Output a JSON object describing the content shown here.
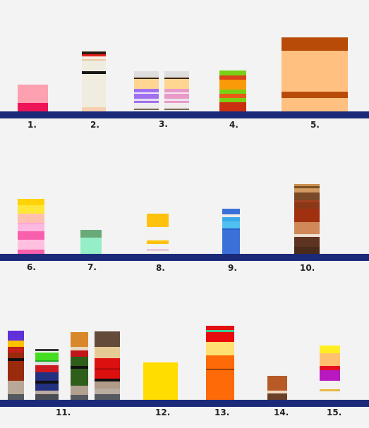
{
  "shelf_color": "#1b2a78",
  "labels": [
    "1.",
    "2.",
    "3.",
    "4.",
    "5.",
    "6.",
    "7.",
    "8.",
    "9.",
    "10.",
    "11.",
    "12.",
    "13.",
    "14.",
    "15."
  ],
  "stacks": [
    {
      "name": "stack-1",
      "bands": [
        [
          "#fda0b0",
          26
        ],
        [
          "#ee1458",
          12
        ]
      ]
    },
    {
      "name": "stack-2",
      "bands": [
        [
          "#2a1a10",
          4
        ],
        [
          "#e8201a",
          3
        ],
        [
          "#f6efe5",
          4
        ],
        [
          "#e8c8a0",
          2
        ],
        [
          "#f0ece0",
          15
        ],
        [
          "#151515",
          4
        ],
        [
          "#f0ece0",
          47
        ],
        [
          "#f8d0b0",
          6
        ]
      ]
    },
    {
      "name": "stack-3a",
      "bands": [
        [
          "#dedede",
          8
        ],
        [
          "#f0e8d8",
          1
        ],
        [
          "#3b2410",
          2
        ],
        [
          "#ffd591",
          14
        ],
        [
          "#a070f0",
          5
        ],
        [
          "#f0e8f8",
          2
        ],
        [
          "#a070f0",
          7
        ],
        [
          "#e8e0f0",
          3
        ],
        [
          "#a070f0",
          3
        ],
        [
          "#efedeb",
          8
        ],
        [
          "#7d6a58",
          2
        ],
        [
          "#efedeb",
          2
        ]
      ]
    },
    {
      "name": "stack-3b",
      "bands": [
        [
          "#dedede",
          8
        ],
        [
          "#f0e8d8",
          1
        ],
        [
          "#3b2410",
          2
        ],
        [
          "#ffd591",
          14
        ],
        [
          "#e89ac8",
          5
        ],
        [
          "#f5e8f0",
          2
        ],
        [
          "#e89ac8",
          7
        ],
        [
          "#eee5ec",
          3
        ],
        [
          "#e89ac8",
          3
        ],
        [
          "#efedeb",
          8
        ],
        [
          "#7d6a58",
          2
        ],
        [
          "#efedeb",
          2
        ]
      ]
    },
    {
      "name": "stack-4",
      "bands": [
        [
          "#7ad014",
          7
        ],
        [
          "#d84318",
          6
        ],
        [
          "#fb9a08",
          14
        ],
        [
          "#7ad014",
          6
        ],
        [
          "#e85a18",
          6
        ],
        [
          "#7ad014",
          6
        ],
        [
          "#cc2f10",
          13
        ]
      ]
    },
    {
      "name": "stack-5",
      "bands": [
        [
          "#b84b08",
          19
        ],
        [
          "#ffc080",
          58
        ],
        [
          "#b84b08",
          9
        ],
        [
          "#ffc080",
          19
        ]
      ]
    },
    {
      "name": "stack-6",
      "bands": [
        [
          "#ffd20a",
          9
        ],
        [
          "#ffe73a",
          12
        ],
        [
          "#ffc0b0",
          13
        ],
        [
          "#fba6dc",
          2
        ],
        [
          "#ffb8e0",
          10
        ],
        [
          "#f85fac",
          12
        ],
        [
          "#ffc0e0",
          14
        ],
        [
          "#f85fac",
          6
        ]
      ]
    },
    {
      "name": "stack-7",
      "bands": [
        [
          "#6aaa78",
          11
        ],
        [
          "#96eec8",
          23
        ]
      ]
    },
    {
      "name": "stack-8",
      "bands": [
        [
          "#ffc20a",
          19
        ],
        [
          "#f4f2f0",
          19
        ],
        [
          "#ffc20a",
          5
        ],
        [
          "#f4f2f0",
          7
        ],
        [
          "#e8c8e0",
          3
        ],
        [
          "#f4f2f0",
          4
        ]
      ]
    },
    {
      "name": "stack-9",
      "bands": [
        [
          "#3a70d8",
          8
        ],
        [
          "#f0ece8",
          4
        ],
        [
          "#3aaaec",
          6
        ],
        [
          "#50c0f0",
          10
        ],
        [
          "#2860c8",
          2
        ],
        [
          "#3a70d8",
          34
        ]
      ]
    },
    {
      "name": "stack-10",
      "bands": [
        [
          "#c89050",
          3
        ],
        [
          "#7a5020",
          3
        ],
        [
          "#d29a62",
          6
        ],
        [
          "#7a4a28",
          11
        ],
        [
          "#a04020",
          3
        ],
        [
          "#8a3818",
          9
        ],
        [
          "#a03010",
          19
        ],
        [
          "#d08858",
          17
        ],
        [
          "#f0e0d0",
          4
        ],
        [
          "#5e3420",
          14
        ],
        [
          "#4a2a18",
          10
        ]
      ]
    },
    {
      "name": "stack-11a",
      "bands": [
        [
          "#6030d8",
          14
        ],
        [
          "#ffc000",
          9
        ],
        [
          "#c02018",
          8
        ],
        [
          "#9a2a0c",
          8
        ],
        [
          "#101010",
          4
        ],
        [
          "#9a2a0c",
          28
        ],
        [
          "#b8a898",
          19
        ],
        [
          "#555a60",
          8
        ]
      ]
    },
    {
      "name": "stack-11b",
      "bands": [
        [
          "#333333",
          3
        ],
        [
          "#f4f2f0",
          2
        ],
        [
          "#44dd22",
          11
        ],
        [
          "#22aa22",
          2
        ],
        [
          "#dddddd",
          5
        ],
        [
          "#cc1820",
          10
        ],
        [
          "#223080",
          12
        ],
        [
          "#101010",
          4
        ],
        [
          "#223080",
          10
        ],
        [
          "#bbaaa0",
          5
        ],
        [
          "#4a4e54",
          8
        ]
      ]
    },
    {
      "name": "stack-11c",
      "bands": [
        [
          "#d8882a",
          21
        ],
        [
          "#e8d8c0",
          5
        ],
        [
          "#c0181a",
          9
        ],
        [
          "#2e5e1a",
          13
        ],
        [
          "#101010",
          4
        ],
        [
          "#2e5e1a",
          24
        ],
        [
          "#b0a090",
          13
        ],
        [
          "#555a60",
          7
        ]
      ]
    },
    {
      "name": "stack-11d",
      "bands": [
        [
          "#644a38",
          22
        ],
        [
          "#e6ca96",
          16
        ],
        [
          "#dd1010",
          14
        ],
        [
          "#b80c0c",
          3
        ],
        [
          "#dd1010",
          12
        ],
        [
          "#101010",
          4
        ],
        [
          "#b09a88",
          10
        ],
        [
          "#b8aca0",
          8
        ],
        [
          "#555a60",
          8
        ]
      ]
    },
    {
      "name": "stack-12",
      "bands": [
        [
          "#ffdd00",
          53
        ]
      ]
    },
    {
      "name": "stack-13",
      "bands": [
        [
          "#e01010",
          6
        ],
        [
          "#40cc90",
          3
        ],
        [
          "#e80c0c",
          14
        ],
        [
          "#ffe070",
          19
        ],
        [
          "#ff6a08",
          19
        ],
        [
          "#2a1008",
          1
        ],
        [
          "#ff6a08",
          43
        ]
      ]
    },
    {
      "name": "stack-14",
      "bands": [
        [
          "#b85a28",
          21
        ],
        [
          "#f0d8c0",
          4
        ],
        [
          "#6a4028",
          9
        ]
      ]
    },
    {
      "name": "stack-15",
      "bands": [
        [
          "#ffee22",
          11
        ],
        [
          "#ffc070",
          18
        ],
        [
          "#e81020",
          6
        ],
        [
          "#b818c0",
          15
        ],
        [
          "#f4f2f0",
          12
        ],
        [
          "#e8b840",
          3
        ],
        [
          "#f4f2f0",
          12
        ]
      ]
    }
  ]
}
